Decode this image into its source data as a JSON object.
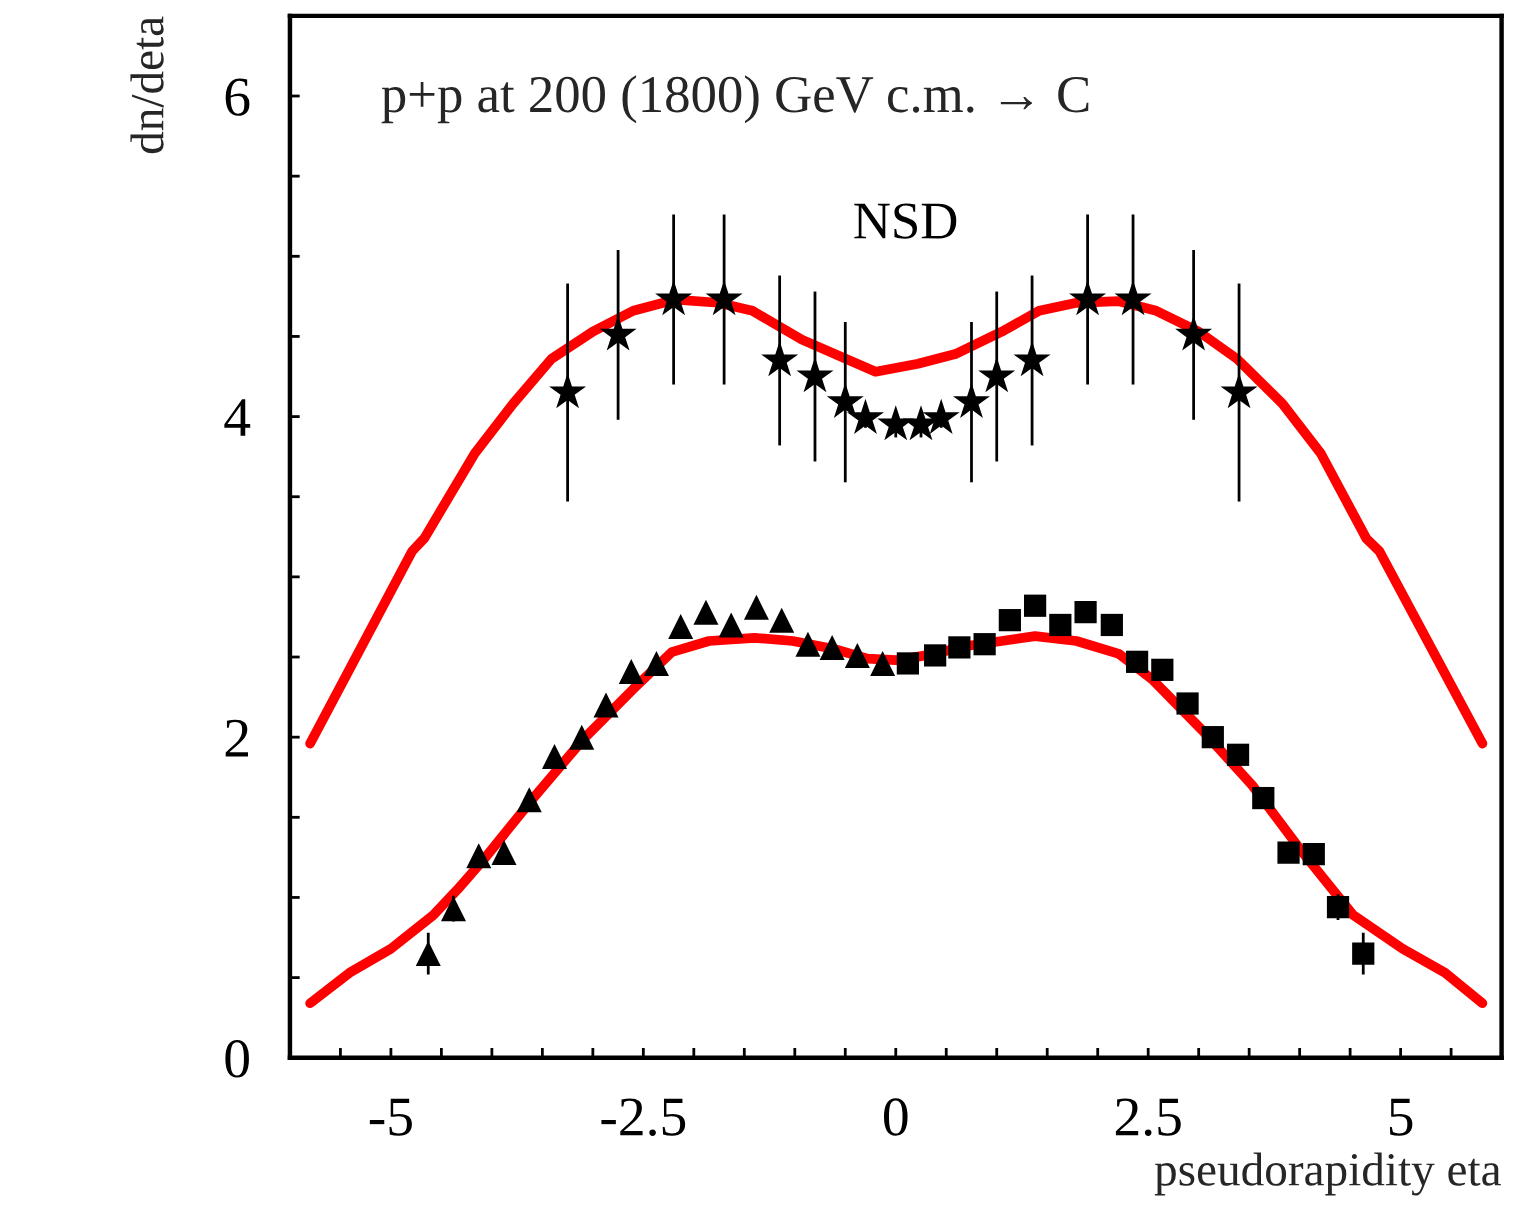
{
  "chart_data": {
    "type": "scatter",
    "title": "p+p at 200 (1800) GeV c.m. → C",
    "xlabel": "pseudorapidity eta",
    "ylabel": "dn/deta",
    "xlim": [
      -6,
      6
    ],
    "ylim": [
      0,
      6.5
    ],
    "xticks": [
      {
        "value": -5.5,
        "label": null
      },
      -5,
      {
        "value": -4.5,
        "label": null
      },
      {
        "value": -4,
        "label": null
      },
      {
        "value": -3.5,
        "label": null
      },
      {
        "value": -3,
        "label": null
      },
      -2.5,
      {
        "value": -2,
        "label": null
      },
      {
        "value": -1.5,
        "label": null
      },
      {
        "value": -1,
        "label": null
      },
      {
        "value": -0.5,
        "label": null
      },
      0,
      {
        "value": 0.5,
        "label": null
      },
      {
        "value": 1,
        "label": null
      },
      {
        "value": 1.5,
        "label": null
      },
      {
        "value": 2,
        "label": null
      },
      2.5,
      {
        "value": 3,
        "label": null
      },
      {
        "value": 3.5,
        "label": null
      },
      {
        "value": 4,
        "label": null
      },
      {
        "value": 4.5,
        "label": null
      },
      5,
      {
        "value": 5.5,
        "label": null
      }
    ],
    "yticks": [
      0,
      {
        "value": 0.5,
        "label": null
      },
      {
        "value": 1,
        "label": null
      },
      {
        "value": 1.5,
        "label": null
      },
      2,
      {
        "value": 2.5,
        "label": null
      },
      {
        "value": 3,
        "label": null
      },
      {
        "value": 3.5,
        "label": null
      },
      4,
      {
        "value": 4.5,
        "label": null
      },
      {
        "value": 5,
        "label": null
      },
      {
        "value": 5.5,
        "label": null
      },
      6
    ],
    "grid": false,
    "legend": false,
    "series": [
      {
        "type": "line",
        "color": "#ff0000",
        "marker": "none",
        "line_style": "solid",
        "x": [
          -5.8,
          -4.79,
          -4.67,
          -4.17,
          -3.79,
          -3.41,
          -3.0,
          -2.6,
          -2.18,
          -1.76,
          -1.42,
          -0.93,
          -0.2,
          0.22,
          0.59,
          1.05,
          1.42,
          1.79,
          2.21,
          2.58,
          3.0,
          3.38,
          3.83,
          4.21,
          4.66,
          4.79,
          5.81
        ],
        "values": [
          1.96,
          3.16,
          3.24,
          3.77,
          4.08,
          4.36,
          4.53,
          4.66,
          4.73,
          4.71,
          4.66,
          4.48,
          4.28,
          4.33,
          4.39,
          4.53,
          4.66,
          4.71,
          4.72,
          4.66,
          4.53,
          4.36,
          4.08,
          3.77,
          3.24,
          3.16,
          1.96
        ]
      },
      {
        "type": "line",
        "color": "#ff0000",
        "marker": "none",
        "line_style": "solid",
        "x": [
          -5.8,
          -5.41,
          -5.0,
          -4.58,
          -4.34,
          -4.09,
          -3.59,
          -3.09,
          -2.6,
          -2.22,
          -1.85,
          -1.4,
          -1.02,
          -0.61,
          -0.28,
          0.0,
          0.3,
          0.72,
          1.05,
          1.38,
          1.79,
          2.21,
          2.54,
          3.04,
          3.53,
          4.03,
          4.53,
          5.02,
          5.44,
          5.81
        ],
        "values": [
          0.34,
          0.53,
          0.68,
          0.89,
          1.05,
          1.23,
          1.62,
          1.99,
          2.3,
          2.53,
          2.6,
          2.62,
          2.6,
          2.55,
          2.49,
          2.48,
          2.51,
          2.57,
          2.6,
          2.63,
          2.6,
          2.52,
          2.36,
          2.04,
          1.7,
          1.28,
          0.89,
          0.68,
          0.53,
          0.34
        ]
      },
      {
        "name": "NSD",
        "color": "#000000",
        "marker": "star",
        "x": [
          -3.25,
          -2.75,
          -2.2,
          -1.7,
          -1.15,
          -0.8,
          -0.5,
          -0.3,
          0.0,
          0.25,
          0.45,
          0.75,
          1.0,
          1.35,
          1.9,
          2.35,
          2.95,
          3.4
        ],
        "values": [
          4.15,
          4.51,
          4.73,
          4.73,
          4.35,
          4.25,
          4.09,
          3.99,
          3.95,
          3.95,
          3.99,
          4.09,
          4.25,
          4.35,
          4.73,
          4.73,
          4.51,
          4.15
        ],
        "errors": [
          0.68,
          0.53,
          0.53,
          0.53,
          0.53,
          0.53,
          0.5,
          0.06,
          0.08,
          0.08,
          0.06,
          0.5,
          0.53,
          0.53,
          0.53,
          0.53,
          0.53,
          0.68
        ]
      },
      {
        "color": "#000000",
        "marker": "triangle",
        "x": [
          -4.63,
          -4.38,
          -4.13,
          -3.88,
          -3.63,
          -3.38,
          -3.11,
          -2.87,
          -2.62,
          -2.37,
          -2.13,
          -1.88,
          -1.63,
          -1.38,
          -1.13,
          -0.87,
          -0.63,
          -0.38,
          -0.13
        ],
        "values": [
          0.65,
          0.93,
          1.26,
          1.28,
          1.61,
          1.88,
          2.0,
          2.2,
          2.41,
          2.46,
          2.69,
          2.78,
          2.7,
          2.81,
          2.73,
          2.58,
          2.56,
          2.51,
          2.46
        ],
        "errors": [
          0.13,
          0.08,
          0.06,
          0.05,
          null,
          null,
          null,
          null,
          null,
          null,
          null,
          null,
          null,
          null,
          null,
          null,
          null,
          null,
          null
        ]
      },
      {
        "color": "#000000",
        "marker": "square",
        "x": [
          0.12,
          0.39,
          0.63,
          0.88,
          1.13,
          1.38,
          1.63,
          1.88,
          2.14,
          2.39,
          2.64,
          2.89,
          3.14,
          3.39,
          3.64,
          3.89,
          4.14,
          4.38,
          4.63
        ],
        "values": [
          2.46,
          2.51,
          2.56,
          2.58,
          2.73,
          2.82,
          2.7,
          2.78,
          2.7,
          2.47,
          2.42,
          2.21,
          2.0,
          1.89,
          1.62,
          1.28,
          1.27,
          0.94,
          0.65
        ],
        "errors": [
          null,
          null,
          null,
          null,
          null,
          null,
          null,
          null,
          null,
          null,
          null,
          null,
          null,
          null,
          null,
          null,
          0.05,
          0.08,
          0.13
        ]
      }
    ]
  }
}
